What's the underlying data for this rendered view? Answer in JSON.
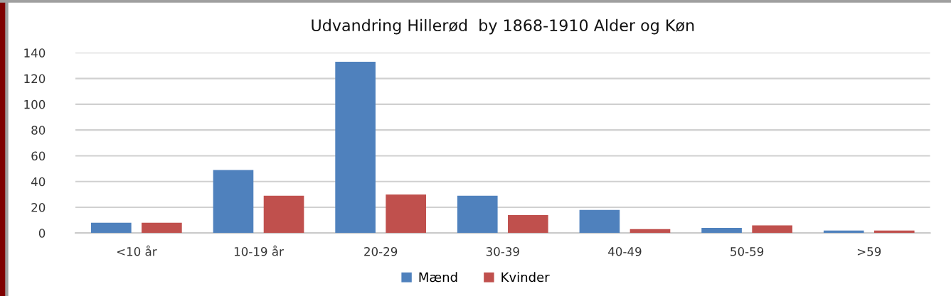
{
  "chart_data": {
    "type": "bar",
    "title": "Udvandring Hillerød  by 1868-1910 Alder og Køn",
    "categories": [
      "<10 år",
      "10-19 år",
      "20-29",
      "30-39",
      "40-49",
      "50-59",
      ">59"
    ],
    "series": [
      {
        "name": "Mænd",
        "color": "#4f81bd",
        "values": [
          8,
          49,
          133,
          29,
          18,
          4,
          2
        ]
      },
      {
        "name": "Kvinder",
        "color": "#c0504d",
        "values": [
          8,
          29,
          30,
          14,
          3,
          6,
          2
        ]
      }
    ],
    "ylim": [
      0,
      140
    ],
    "yticks": [
      0,
      20,
      40,
      60,
      80,
      100,
      120,
      140
    ],
    "grid": "y",
    "legend": "bottom"
  }
}
